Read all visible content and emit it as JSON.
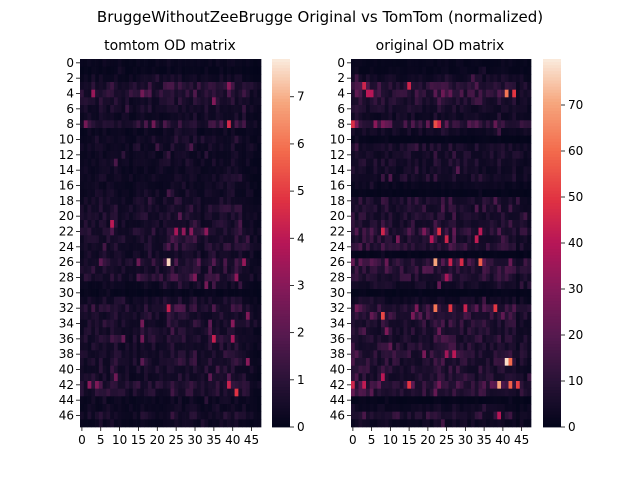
{
  "figure": {
    "suptitle": "BruggeWithoutZeeBrugge Original vs TomTom (normalized)"
  },
  "chart_data": [
    {
      "type": "heatmap",
      "title": "tomtom OD matrix",
      "rows": 48,
      "cols": 48,
      "ytick_labels": [
        "0",
        "2",
        "4",
        "6",
        "8",
        "10",
        "12",
        "14",
        "16",
        "18",
        "20",
        "22",
        "24",
        "26",
        "28",
        "30",
        "32",
        "34",
        "36",
        "38",
        "40",
        "42",
        "44",
        "46"
      ],
      "xtick_labels": [
        "0",
        "5",
        "10",
        "15",
        "20",
        "25",
        "30",
        "35",
        "40",
        "45"
      ],
      "colorbar": {
        "min": 0,
        "max": 7.8,
        "ticks": [
          "0",
          "1",
          "2",
          "3",
          "4",
          "5",
          "6",
          "7"
        ]
      },
      "colormap": "rocket",
      "row_profile": [
        0.3,
        0.2,
        0.5,
        1.2,
        1.3,
        0.9,
        0.8,
        0.6,
        1.4,
        0.4,
        0.7,
        0.6,
        0.5,
        0.6,
        0.5,
        0.6,
        0.5,
        0.6,
        0.9,
        1.0,
        0.9,
        0.9,
        1.2,
        1.1,
        1.1,
        0.8,
        1.4,
        1.1,
        1.2,
        0.5,
        0.2,
        0.8,
        1.3,
        0.9,
        1.0,
        1.0,
        1.1,
        0.9,
        1.0,
        1.0,
        0.9,
        0.8,
        1.4,
        1.1,
        0.4,
        0.5,
        0.8,
        0.4
      ],
      "col_profile": [
        0.7,
        0.8,
        0.8,
        1.0,
        0.9,
        1.0,
        0.9,
        0.9,
        1.2,
        1.1,
        0.8,
        0.8,
        0.7,
        0.6,
        0.7,
        0.8,
        0.9,
        1.0,
        1.0,
        0.9,
        0.8,
        0.8,
        1.0,
        1.2,
        1.3,
        1.2,
        1.2,
        1.1,
        1.1,
        1.2,
        1.2,
        0.9,
        0.7,
        1.0,
        1.0,
        1.1,
        1.1,
        1.0,
        1.1,
        1.1,
        1.1,
        1.1,
        1.0,
        0.9,
        0.8,
        0.6,
        0.4,
        0.3
      ],
      "hotspots": [
        [
          26,
          23,
          7.5
        ],
        [
          32,
          23,
          4.2
        ],
        [
          22,
          25,
          3.6
        ],
        [
          22,
          27,
          3.2
        ],
        [
          22,
          29,
          3.0
        ],
        [
          22,
          33,
          3.1
        ],
        [
          21,
          8,
          4.0
        ],
        [
          36,
          35,
          4.2
        ],
        [
          36,
          40,
          3.5
        ],
        [
          42,
          39,
          4.3
        ],
        [
          43,
          41,
          4.8
        ],
        [
          42,
          2,
          3.0
        ],
        [
          42,
          4,
          2.8
        ],
        [
          39,
          44,
          3.0
        ],
        [
          34,
          40,
          3.0
        ],
        [
          33,
          44,
          2.8
        ],
        [
          8,
          1,
          2.6
        ],
        [
          28,
          30,
          2.8
        ],
        [
          29,
          33,
          2.6
        ]
      ]
    },
    {
      "type": "heatmap",
      "title": "original OD matrix",
      "rows": 48,
      "cols": 48,
      "ytick_labels": [
        "0",
        "2",
        "4",
        "6",
        "8",
        "10",
        "12",
        "14",
        "16",
        "18",
        "20",
        "22",
        "24",
        "26",
        "28",
        "30",
        "32",
        "34",
        "36",
        "38",
        "40",
        "42",
        "44",
        "46"
      ],
      "xtick_labels": [
        "0",
        "5",
        "10",
        "15",
        "20",
        "25",
        "30",
        "35",
        "40",
        "45"
      ],
      "colorbar": {
        "min": 0,
        "max": 80,
        "ticks": [
          "0",
          "10",
          "20",
          "30",
          "40",
          "50",
          "60",
          "70"
        ]
      },
      "colormap": "rocket",
      "row_profile": [
        0.2,
        0.2,
        0.6,
        1.3,
        1.4,
        1.1,
        0.7,
        0.5,
        1.7,
        0.5,
        0.1,
        0.8,
        0.7,
        0.7,
        0.6,
        0.8,
        0.3,
        0.1,
        1.0,
        1.0,
        0.9,
        1.0,
        1.3,
        1.1,
        1.2,
        0.1,
        1.6,
        1.3,
        1.2,
        0.6,
        0.1,
        0.5,
        1.5,
        1.6,
        1.0,
        1.0,
        1.0,
        1.0,
        1.2,
        1.1,
        1.0,
        1.0,
        1.8,
        1.4,
        0.1,
        0.4,
        1.1,
        0.4
      ],
      "col_profile": [
        1.3,
        1.4,
        1.2,
        1.3,
        1.2,
        1.4,
        1.1,
        1.0,
        1.4,
        1.2,
        1.0,
        1.0,
        1.0,
        0.9,
        1.0,
        1.2,
        1.1,
        1.0,
        1.0,
        1.1,
        1.1,
        1.1,
        1.3,
        1.4,
        1.4,
        1.3,
        1.3,
        1.4,
        1.2,
        1.1,
        1.1,
        1.0,
        1.0,
        1.1,
        1.1,
        1.1,
        1.0,
        1.0,
        1.1,
        1.2,
        1.2,
        1.1,
        1.2,
        1.1,
        0.5,
        0.9,
        0.8,
        0.6
      ],
      "hotspots": [
        [
          4,
          41,
          62
        ],
        [
          4,
          43,
          50
        ],
        [
          3,
          3,
          45
        ],
        [
          4,
          5,
          40
        ],
        [
          8,
          0,
          48
        ],
        [
          8,
          22,
          55
        ],
        [
          8,
          23,
          45
        ],
        [
          22,
          23,
          48
        ],
        [
          23,
          25,
          45
        ],
        [
          23,
          21,
          40
        ],
        [
          23,
          33,
          42
        ],
        [
          26,
          22,
          70
        ],
        [
          26,
          34,
          58
        ],
        [
          32,
          22,
          62
        ],
        [
          32,
          26,
          50
        ],
        [
          32,
          30,
          44
        ],
        [
          39,
          41,
          78
        ],
        [
          39,
          42,
          60
        ],
        [
          42,
          39,
          70
        ],
        [
          42,
          42,
          58
        ],
        [
          42,
          0,
          45
        ],
        [
          42,
          3,
          42
        ],
        [
          42,
          15,
          50
        ],
        [
          42,
          44,
          52
        ],
        [
          22,
          8,
          45
        ],
        [
          46,
          39,
          40
        ]
      ]
    }
  ]
}
